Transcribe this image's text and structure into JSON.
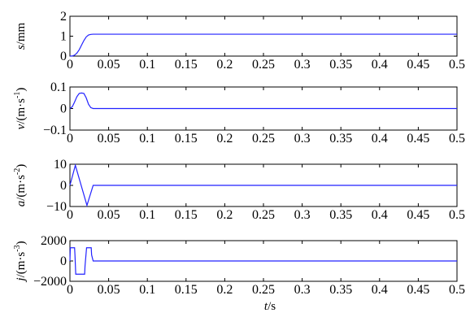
{
  "chart_data": [
    {
      "type": "line",
      "ylabel_var": "s",
      "ylabel_unit": "/mm",
      "ylabel_sup": "",
      "ylim": [
        0,
        2
      ],
      "yticks": [
        0,
        1,
        2
      ],
      "xlim": [
        0,
        0.5
      ],
      "xticks": [
        "0",
        "0.05",
        "0.1",
        "0.15",
        "0.2",
        "0.25",
        "0.3",
        "0.35",
        "0.4",
        "0.45",
        "0.5"
      ],
      "x": [
        0,
        0.003,
        0.006,
        0.009,
        0.012,
        0.015,
        0.018,
        0.021,
        0.024,
        0.027,
        0.03,
        0.1,
        0.2,
        0.3,
        0.4,
        0.5
      ],
      "y": [
        0,
        0.005,
        0.05,
        0.15,
        0.32,
        0.55,
        0.78,
        0.96,
        1.06,
        1.09,
        1.1,
        1.1,
        1.1,
        1.1,
        1.1,
        1.1
      ]
    },
    {
      "type": "line",
      "ylabel_var": "v",
      "ylabel_unit": "/(m·s",
      "ylabel_sup": "-1",
      "ylim": [
        -0.1,
        0.1
      ],
      "yticks": [
        -0.1,
        0,
        0.1
      ],
      "xlim": [
        0,
        0.5
      ],
      "xticks": [
        "0",
        "0.05",
        "0.1",
        "0.15",
        "0.2",
        "0.25",
        "0.3",
        "0.35",
        "0.4",
        "0.45",
        "0.5"
      ],
      "x": [
        0,
        0.003,
        0.006,
        0.009,
        0.012,
        0.015,
        0.018,
        0.021,
        0.024,
        0.027,
        0.03,
        0.5
      ],
      "y": [
        0,
        0.008,
        0.03,
        0.055,
        0.07,
        0.072,
        0.07,
        0.05,
        0.02,
        0.004,
        0,
        0
      ]
    },
    {
      "type": "line",
      "ylabel_var": "a",
      "ylabel_unit": "/(m·s",
      "ylabel_sup": "-2",
      "ylim": [
        -10,
        10
      ],
      "yticks": [
        -10,
        0,
        10
      ],
      "xlim": [
        0,
        0.5
      ],
      "xticks": [
        "0",
        "0.05",
        "0.1",
        "0.15",
        "0.2",
        "0.25",
        "0.3",
        "0.35",
        "0.4",
        "0.45",
        "0.5"
      ],
      "x": [
        0,
        0.007,
        0.022,
        0.03,
        0.5
      ],
      "y": [
        0,
        9.5,
        -9.5,
        0,
        0
      ]
    },
    {
      "type": "line",
      "ylabel_var": "j",
      "ylabel_unit": "/(m·s",
      "ylabel_sup": "-3",
      "ylim": [
        -2000,
        2000
      ],
      "yticks": [
        -2000,
        0,
        2000
      ],
      "yticklabels": [
        "−2000",
        "0",
        "2000"
      ],
      "xlim": [
        0,
        0.5
      ],
      "xticks": [
        "0",
        "0.05",
        "0.1",
        "0.15",
        "0.2",
        "0.25",
        "0.3",
        "0.35",
        "0.4",
        "0.45",
        "0.5"
      ],
      "xlabel_var": "t",
      "xlabel_unit": "/s",
      "x": [
        0,
        0.0005,
        0.006,
        0.0065,
        0.0075,
        0.008,
        0.019,
        0.0195,
        0.0215,
        0.022,
        0.0275,
        0.028,
        0.03,
        0.0305,
        0.5
      ],
      "y": [
        0,
        1300,
        1300,
        600,
        -1300,
        -1300,
        -1300,
        -500,
        1300,
        1300,
        1300,
        600,
        0,
        0,
        0
      ]
    }
  ]
}
